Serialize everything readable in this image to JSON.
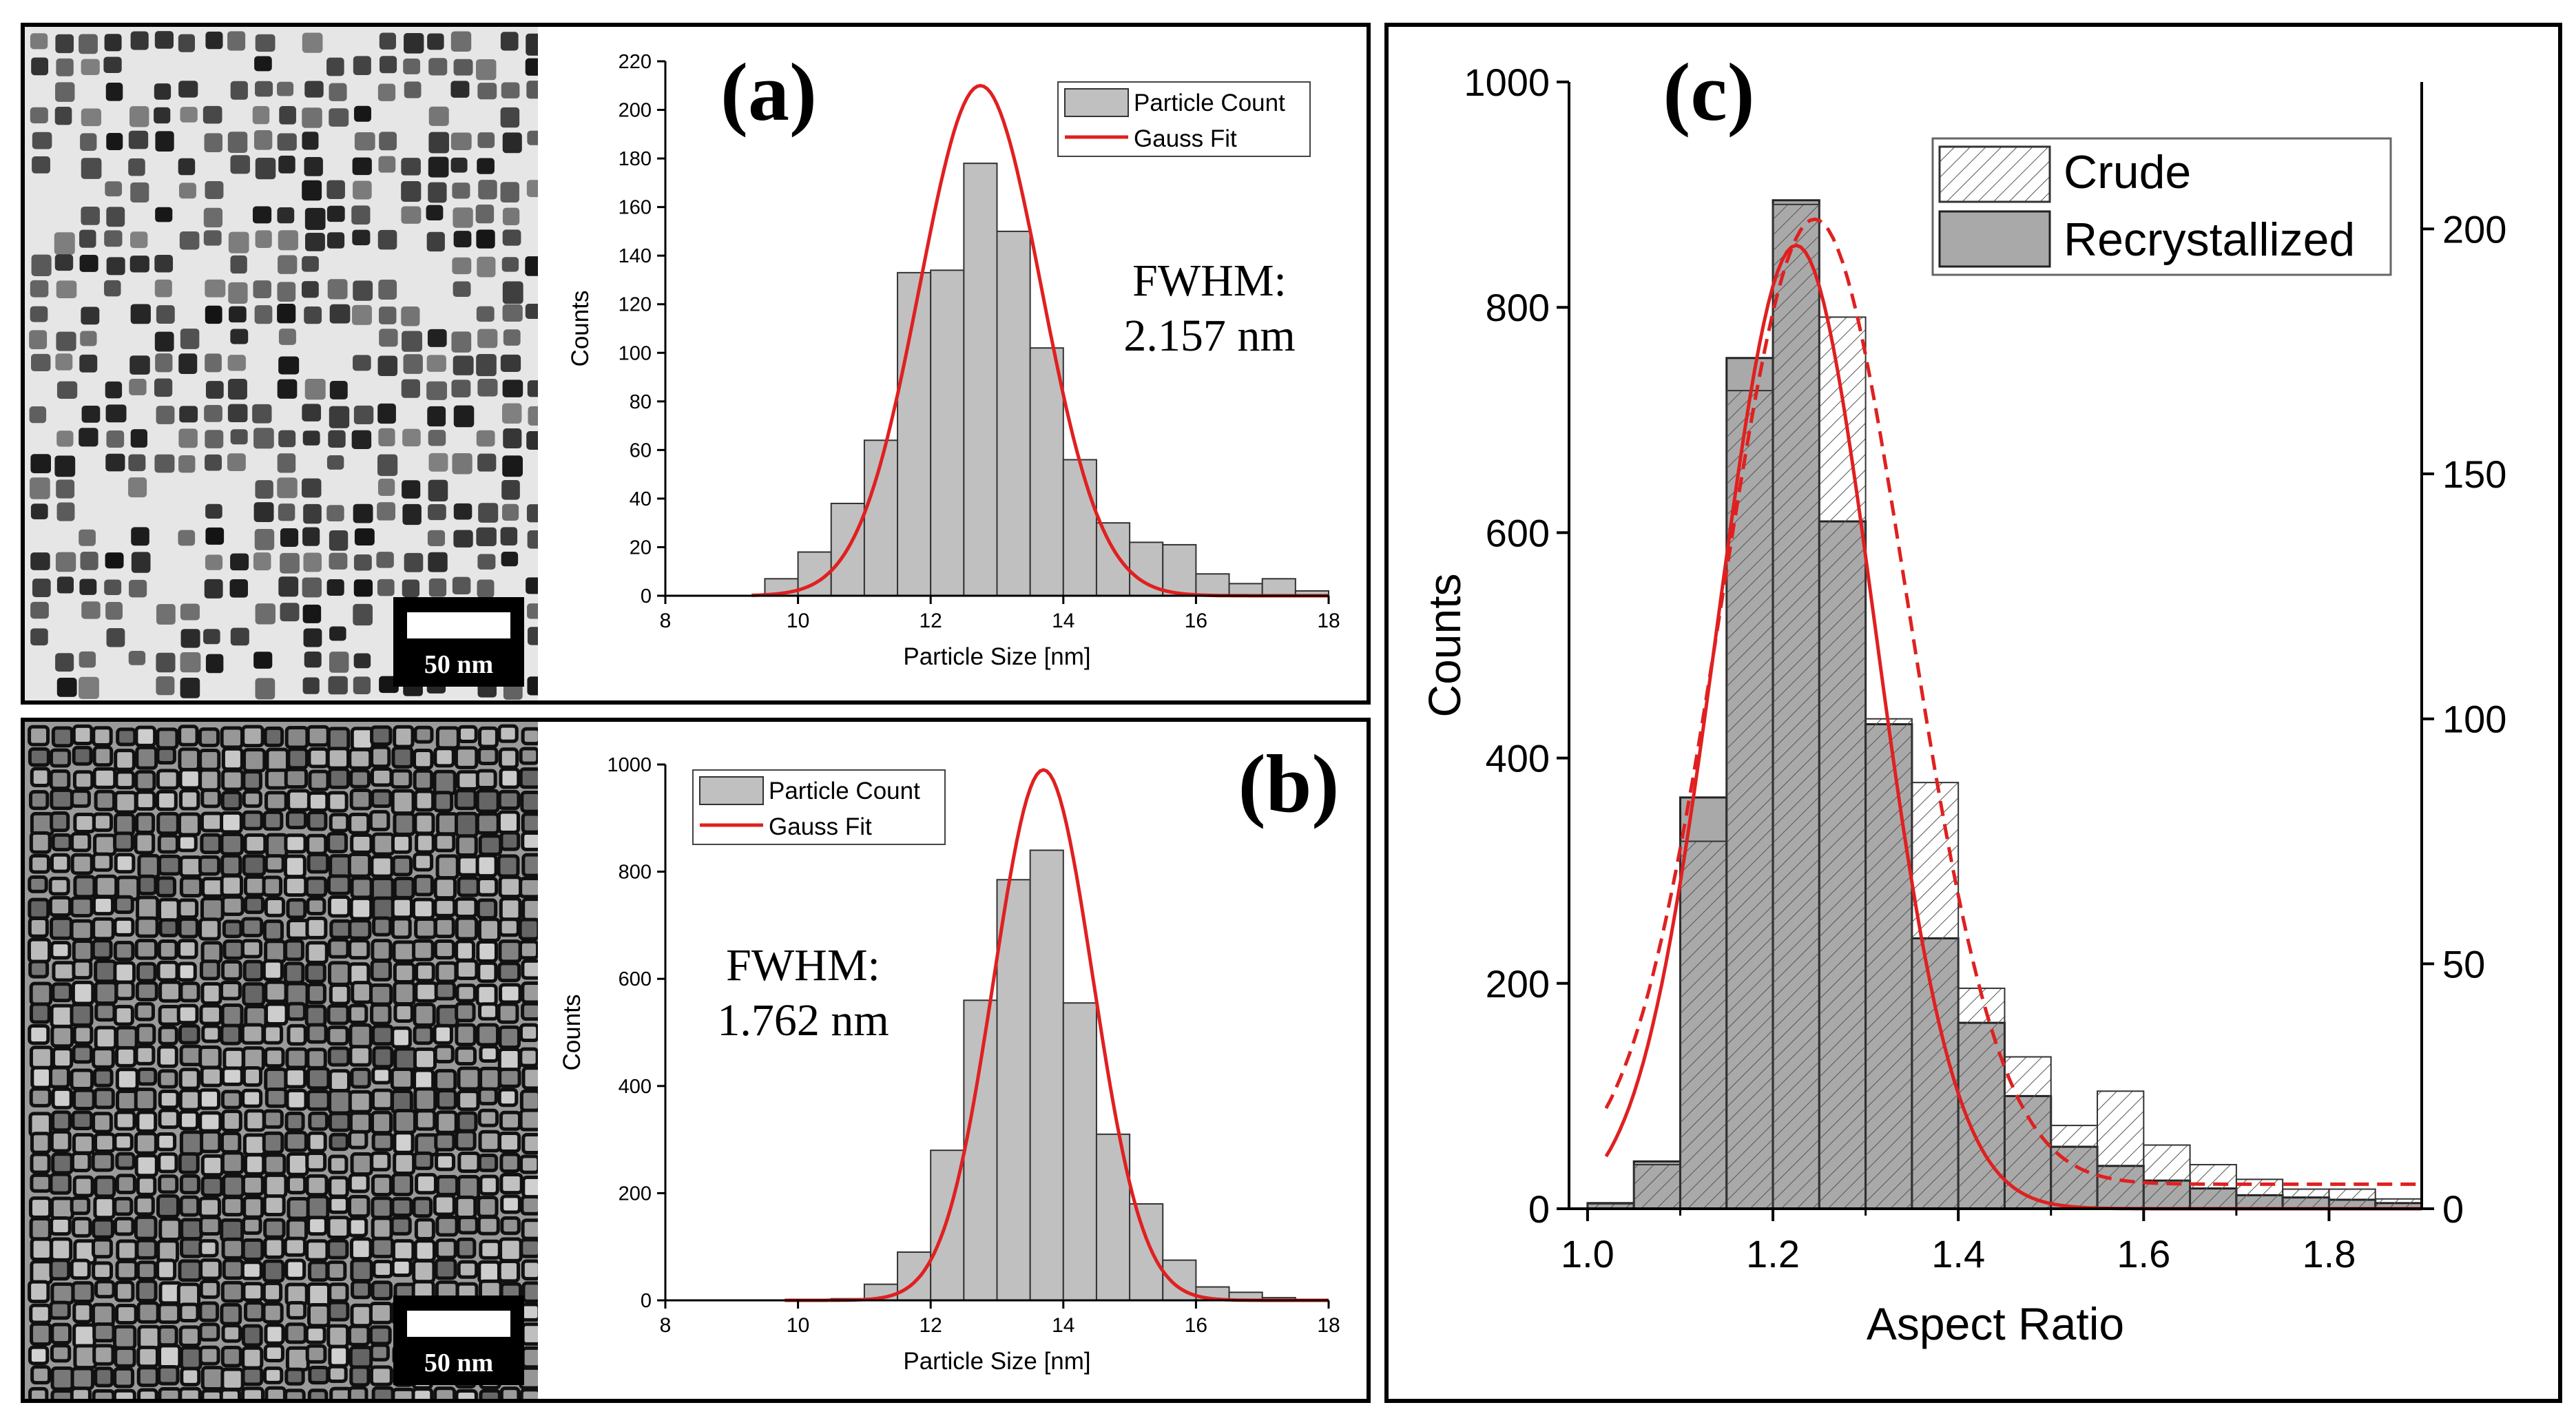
{
  "panel_a": {
    "label": "(a)",
    "scalebar": "50 nm",
    "fwhm_label": "FWHM:",
    "fwhm_value": "2.157 nm"
  },
  "panel_b": {
    "label": "(b)",
    "scalebar": "50 nm",
    "fwhm_label": "FWHM:",
    "fwhm_value": "1.762 nm"
  },
  "panel_c": {
    "label": "(c)"
  },
  "colors": {
    "bar_fill": "#c0c0c0",
    "bar_dark": "#8e8e8e",
    "fit": "#e02020",
    "axis": "#000000"
  },
  "chart_data": [
    {
      "id": "a",
      "type": "bar",
      "xlabel": "Particle Size [nm]",
      "ylabel": "Counts",
      "xlim": [
        8,
        18
      ],
      "ylim": [
        0,
        220
      ],
      "xticks": [
        "8",
        "10",
        "12",
        "14",
        "16",
        "18"
      ],
      "yticks": [
        "0",
        "20",
        "40",
        "60",
        "80",
        "100",
        "120",
        "140",
        "160",
        "180",
        "200",
        "220"
      ],
      "bin_width": 0.5,
      "bin_centers": [
        9.75,
        10.25,
        10.75,
        11.25,
        11.75,
        12.25,
        12.75,
        13.25,
        13.75,
        14.25,
        14.75,
        15.25,
        15.75,
        16.25,
        16.75,
        17.25,
        17.75
      ],
      "values": [
        7,
        18,
        38,
        64,
        133,
        134,
        178,
        150,
        102,
        56,
        30,
        22,
        21,
        9,
        5,
        7,
        2
      ],
      "fit": {
        "type": "gauss",
        "center": 12.75,
        "fwhm": 2.157,
        "amplitude": 210,
        "x_range": [
          9.3,
          18
        ]
      },
      "legend": [
        "Particle Count",
        "Gauss Fit"
      ]
    },
    {
      "id": "b",
      "type": "bar",
      "xlabel": "Particle Size [nm]",
      "ylabel": "Counts",
      "xlim": [
        8,
        18
      ],
      "ylim": [
        0,
        1000
      ],
      "xticks": [
        "8",
        "10",
        "12",
        "14",
        "16",
        "18"
      ],
      "yticks": [
        "0",
        "200",
        "400",
        "600",
        "800",
        "1000"
      ],
      "bin_width": 0.5,
      "bin_centers": [
        9.75,
        10.25,
        10.75,
        11.25,
        11.75,
        12.25,
        12.75,
        13.25,
        13.75,
        14.25,
        14.75,
        15.25,
        15.75,
        16.25,
        16.75,
        17.25,
        17.75
      ],
      "values": [
        0,
        0,
        3,
        30,
        90,
        280,
        560,
        785,
        840,
        555,
        310,
        180,
        75,
        25,
        15,
        5,
        0
      ],
      "fit": {
        "type": "gauss",
        "center": 13.7,
        "fwhm": 1.762,
        "amplitude": 990,
        "x_range": [
          9.8,
          18
        ]
      },
      "legend": [
        "Particle Count",
        "Gauss Fit"
      ]
    },
    {
      "id": "c",
      "type": "bar",
      "xlabel": "Aspect Ratio",
      "ylabel": "Counts",
      "xlim": [
        0.98,
        1.9
      ],
      "ylim": [
        0,
        1000
      ],
      "y2lim": [
        0,
        230
      ],
      "xticks": [
        "1.0",
        "1.2",
        "1.4",
        "1.6",
        "1.8"
      ],
      "yticks": [
        "0",
        "200",
        "400",
        "600",
        "800",
        "1000"
      ],
      "y2ticks": [
        "0",
        "50",
        "100",
        "150",
        "200"
      ],
      "bin_width": 0.05,
      "bin_centers": [
        1.025,
        1.075,
        1.125,
        1.175,
        1.225,
        1.275,
        1.325,
        1.375,
        1.425,
        1.475,
        1.525,
        1.575,
        1.625,
        1.675,
        1.725,
        1.775,
        1.825,
        1.875
      ],
      "series": [
        {
          "name": "Crude",
          "axis": "right",
          "style": "hatched",
          "values": [
            1,
            9,
            75,
            167,
            205,
            182,
            100,
            87,
            45,
            31,
            17,
            24,
            13,
            9,
            6,
            4,
            4,
            2
          ]
        },
        {
          "name": "Recrystallized",
          "axis": "left",
          "style": "solid",
          "values": [
            5,
            42,
            365,
            755,
            895,
            610,
            430,
            240,
            165,
            100,
            55,
            38,
            25,
            18,
            12,
            10,
            8,
            5
          ]
        }
      ],
      "fits": [
        {
          "for": "Recrystallized",
          "axis": "left",
          "style": "solid",
          "center": 1.225,
          "fwhm": 0.2,
          "amplitude": 855,
          "baseline": 0,
          "x_range": [
            1.02,
            1.9
          ]
        },
        {
          "for": "Crude",
          "axis": "right",
          "style": "dashed",
          "center": 1.245,
          "fwhm": 0.235,
          "amplitude": 197,
          "baseline": 5,
          "x_range": [
            1.02,
            1.9
          ]
        }
      ],
      "legend": [
        "Crude",
        "Recrystallized"
      ]
    }
  ]
}
